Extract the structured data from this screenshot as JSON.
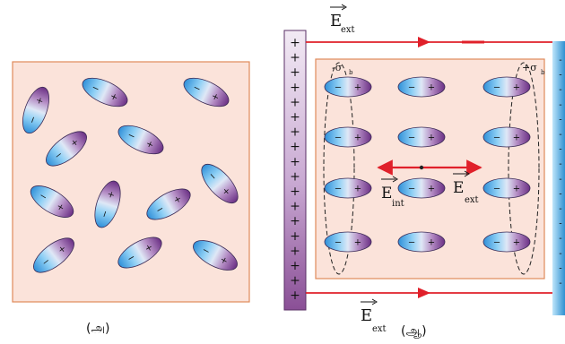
{
  "captions": {
    "left": "(அ)",
    "right": "(ஆ)"
  },
  "field_labels": {
    "E_main": "E",
    "ext_sub": "ext",
    "int_sub": "int",
    "minus_sigma": "-σ",
    "plus_sigma": "+σ",
    "b_sub": "b"
  },
  "plate": {
    "positive_sign": "+",
    "negative_sign": "-",
    "sign_count": 18
  },
  "molecule": {
    "negative_sign": "−",
    "positive_sign": "+"
  },
  "colors": {
    "box_fill": "#fbe3da",
    "box_border": "#e08a5a",
    "field_line": "#e0202a",
    "molecule_blue": "#2f8fd8",
    "molecule_purple": "#7a3c8e",
    "plate_purple": "#8a4f96",
    "plate_blue": "#2f90d0"
  },
  "icons": [
    "positive-plate",
    "negative-plate",
    "dipole-molecule",
    "field-arrow"
  ]
}
